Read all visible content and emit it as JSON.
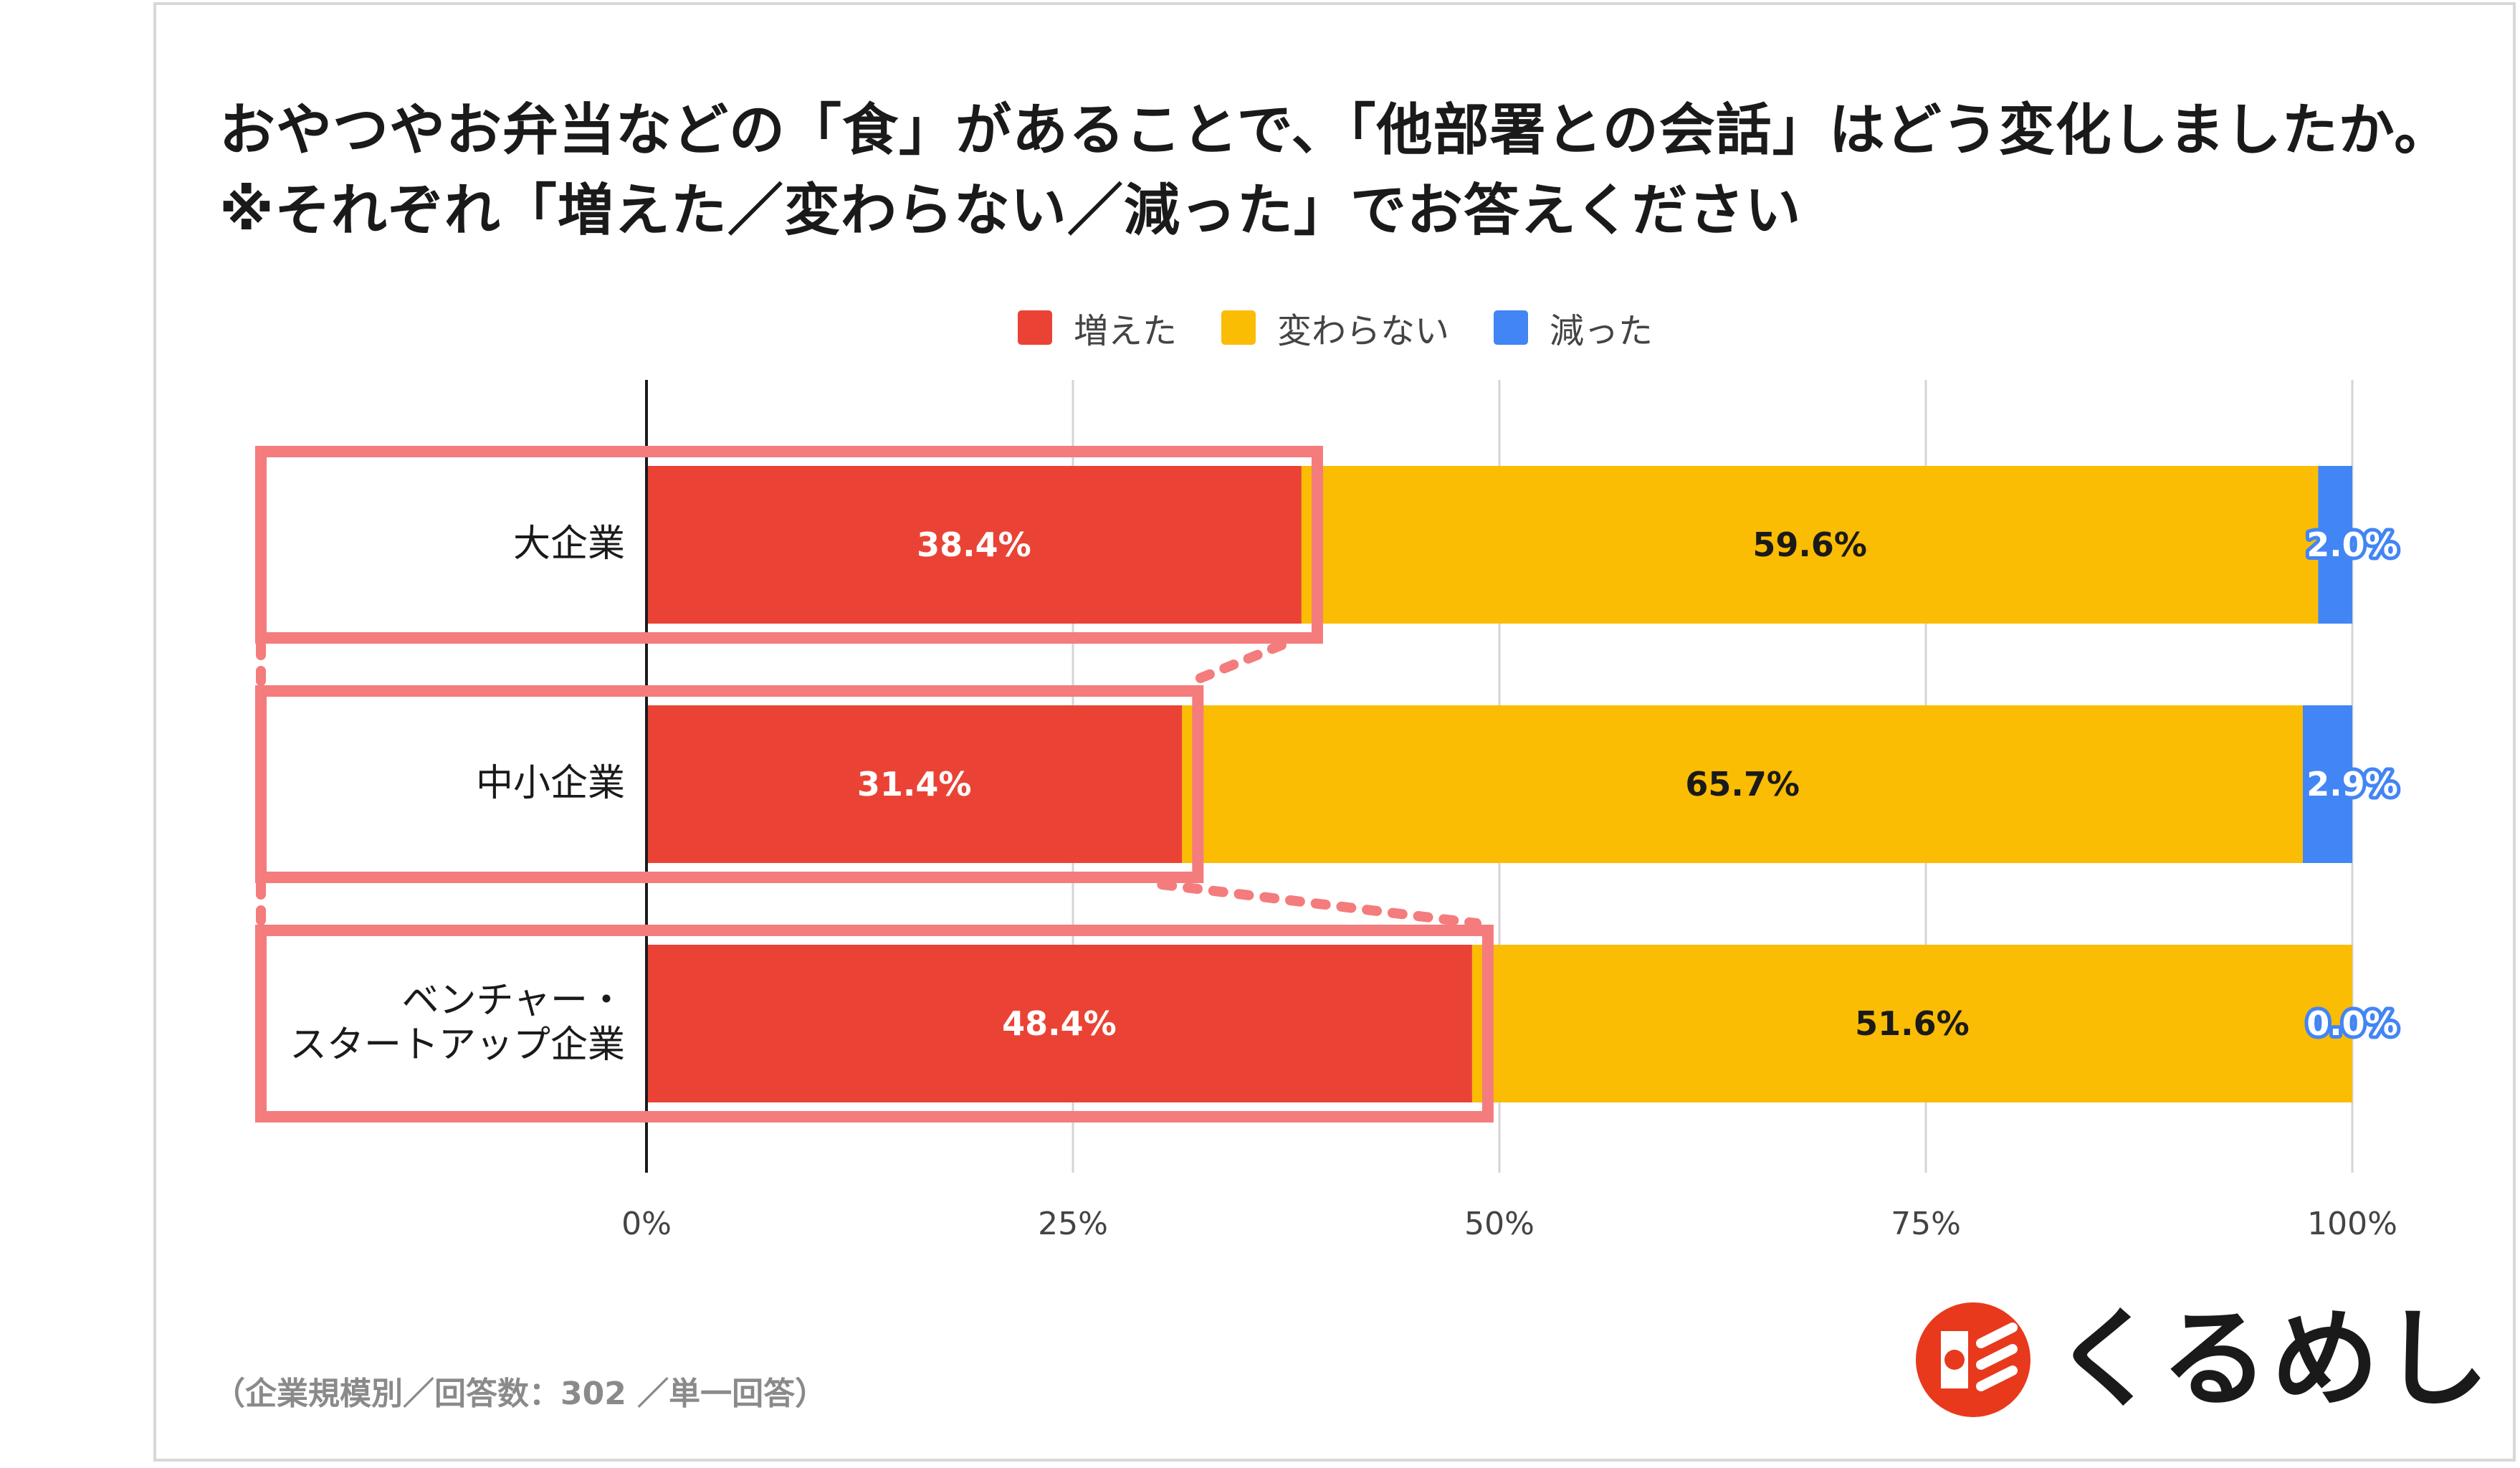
{
  "title": "おやつやお弁当などの「食」があることで、「他部署との会話」はどう変化しましたか。※それぞれ「増えた／変わらない／減った」でお答えください",
  "colors": {
    "increased": "#EA4335",
    "unchanged": "#FBBC04",
    "decreased": "#4285F4",
    "highlight": "#F47C7C",
    "brand": "#E8391D"
  },
  "chart_data": {
    "type": "bar",
    "orientation": "horizontal",
    "stacked": true,
    "title": "おやつやお弁当などの「食」があることで、「他部署との会話」はどう変化しましたか。※それぞれ「増えた／変わらない／減った」でお答えください",
    "categories": [
      "大企業",
      "中小企業",
      "ベンチャー・\nスタートアップ企業"
    ],
    "series": [
      {
        "name": "増えた",
        "values": [
          38.4,
          31.4,
          48.4
        ],
        "color": "#EA4335",
        "label_color": "#ffffff"
      },
      {
        "name": "変わらない",
        "values": [
          59.6,
          65.7,
          51.6
        ],
        "color": "#FBBC04",
        "label_color": "#1a1a1a"
      },
      {
        "name": "減った",
        "values": [
          2.0,
          2.9,
          0.0
        ],
        "color": "#4285F4",
        "label_color": "#ffffff"
      }
    ],
    "data_labels": [
      [
        "38.4%",
        "59.6%",
        "2.0%"
      ],
      [
        "31.4%",
        "65.7%",
        "2.9%"
      ],
      [
        "48.4%",
        "51.6%",
        "0.0%"
      ]
    ],
    "x_ticks": [
      0,
      25,
      50,
      75,
      100
    ],
    "x_tick_labels": [
      "0%",
      "25%",
      "50%",
      "75%",
      "100%"
    ],
    "xlim": [
      0,
      100
    ],
    "xlabel": "",
    "ylabel": "",
    "legend_position": "top-center",
    "grid": true,
    "highlight": "増えた"
  },
  "footnote": "（企業規模別／回答数：302 ／単一回答）",
  "brand": {
    "name": "くるめし",
    "icon": "kurumeshi-logo-icon"
  }
}
